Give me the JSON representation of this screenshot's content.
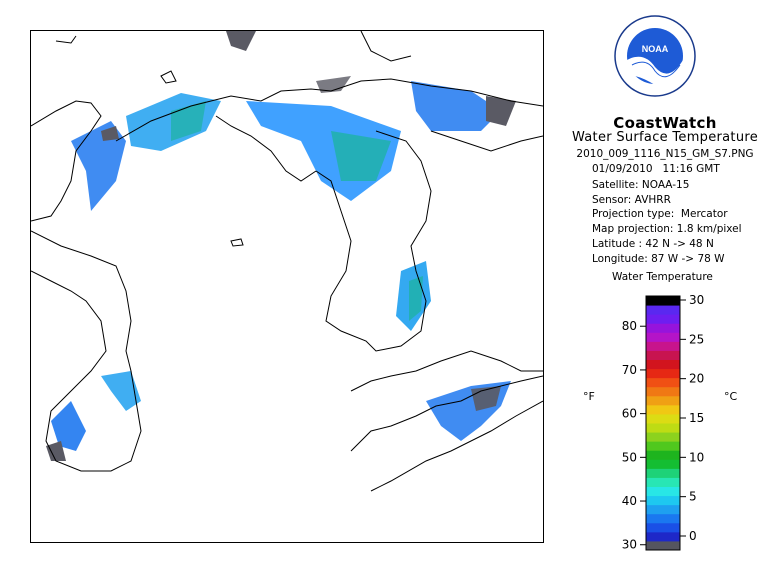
{
  "brand": {
    "title": "CoastWatch",
    "subtitle": "Water Surface Temperature",
    "logo_text": "NOAA",
    "logo_ring_text": "NATIONAL OCEANIC AND ATMOSPHERIC ADMINISTRATION • U.S. DEPARTMENT OF COMMERCE •"
  },
  "meta": {
    "filename": "2010_009_1116_N15_GM_S7.PNG",
    "date": "01/09/2010",
    "time": "11:16 GMT",
    "satellite": "Satellite: NOAA-15",
    "sensor": "Sensor: AVHRR",
    "projection_type": "Projection type:  Mercator",
    "map_projection": "Map projection: 1.8 km/pixel",
    "latitude": "Latitude : 42 N -> 48 N",
    "longitude": "Longitude: 87 W -> 78 W"
  },
  "legend": {
    "title": "Water Temperature",
    "unit_f": "°F",
    "unit_c": "°C",
    "fahrenheit_ticks": [
      30,
      40,
      50,
      60,
      70,
      80
    ],
    "celsius_ticks": [
      0,
      5,
      10,
      15,
      20,
      25,
      30
    ],
    "colors": [
      "#55555f",
      "#1e28c8",
      "#1a50e6",
      "#1a78f0",
      "#1ea0f0",
      "#1ec8f0",
      "#28e6e6",
      "#28e6b4",
      "#1ed278",
      "#14be32",
      "#1eb41e",
      "#50c81e",
      "#8cd21e",
      "#bedc14",
      "#dcdc14",
      "#f0c814",
      "#f0a014",
      "#f07814",
      "#f05014",
      "#e62814",
      "#d2141e",
      "#c81450",
      "#c8148c",
      "#b414c8",
      "#9614dc",
      "#6e1ef0",
      "#5a28f0",
      "#000000"
    ]
  },
  "map": {
    "lake_color_a": "#1e90ff",
    "lake_color_b": "#20b2aa",
    "cloud_color": "#5a5a64",
    "coastline_color": "#000000"
  }
}
